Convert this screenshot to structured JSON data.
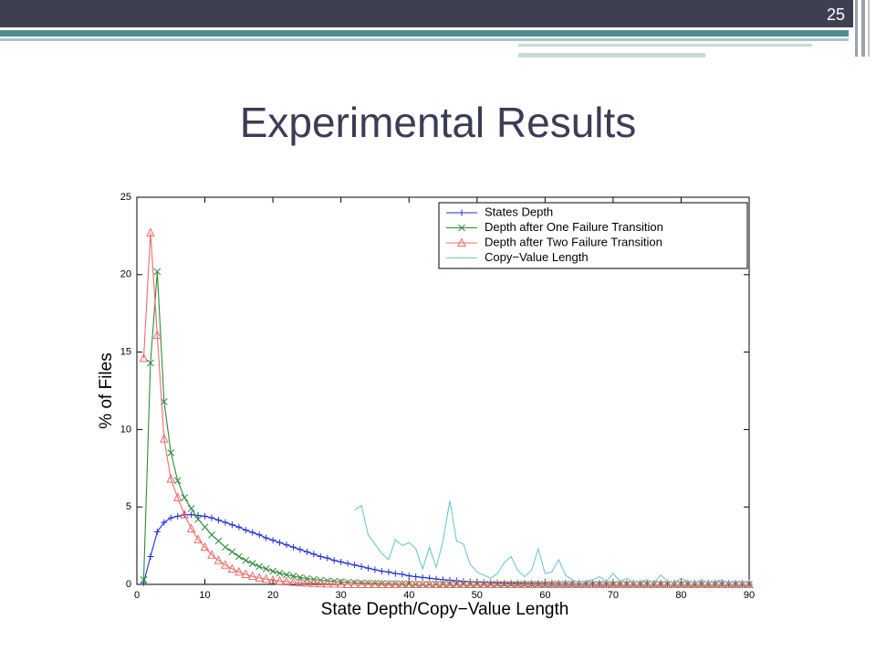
{
  "slide": {
    "number": "25",
    "title": "Experimental Results"
  },
  "chart_data": {
    "type": "line",
    "xlabel": "State Depth/Copy−Value Length",
    "ylabel": "% of Files",
    "x": [
      1,
      2,
      3,
      4,
      5,
      6,
      7,
      8,
      9,
      10,
      11,
      12,
      13,
      14,
      15,
      16,
      17,
      18,
      19,
      20,
      21,
      22,
      23,
      24,
      25,
      26,
      27,
      28,
      29,
      30,
      31,
      32,
      33,
      34,
      35,
      36,
      37,
      38,
      39,
      40,
      41,
      42,
      43,
      44,
      45,
      46,
      47,
      48,
      49,
      50,
      51,
      52,
      53,
      54,
      55,
      56,
      57,
      58,
      59,
      60,
      61,
      62,
      63,
      64,
      65,
      66,
      67,
      68,
      69,
      70,
      71,
      72,
      73,
      74,
      75,
      76,
      77,
      78,
      79,
      80,
      81,
      82,
      83,
      84,
      85,
      86,
      87,
      88,
      89,
      90
    ],
    "xlim": [
      0,
      90
    ],
    "xticks": [
      0,
      10,
      20,
      30,
      40,
      50,
      60,
      70,
      80,
      90
    ],
    "ylim": [
      0,
      25
    ],
    "yticks": [
      0,
      5,
      10,
      15,
      20,
      25
    ],
    "legend": "upper right",
    "series": [
      {
        "name": "States Depth",
        "color": "#1f2fd6",
        "marker": "plus",
        "values": [
          0.1,
          1.8,
          3.4,
          4.0,
          4.3,
          4.4,
          4.5,
          4.5,
          4.45,
          4.4,
          4.3,
          4.15,
          4.0,
          3.85,
          3.7,
          3.5,
          3.35,
          3.2,
          3.0,
          2.85,
          2.7,
          2.55,
          2.4,
          2.25,
          2.1,
          1.95,
          1.8,
          1.7,
          1.55,
          1.45,
          1.35,
          1.25,
          1.15,
          1.05,
          0.95,
          0.85,
          0.8,
          0.7,
          0.65,
          0.55,
          0.5,
          0.45,
          0.4,
          0.35,
          0.3,
          0.27,
          0.24,
          0.2,
          0.18,
          0.16,
          0.14,
          0.12,
          0.1,
          0.09,
          0.08,
          0.07,
          0.06,
          0.05,
          0.05,
          0.04,
          0.04,
          0.03,
          0.03,
          0.02,
          0.02,
          0.02,
          0.01,
          0.01,
          0.01,
          0.01,
          0,
          0,
          0,
          0,
          0,
          0,
          0,
          0,
          0,
          0,
          0,
          0,
          0,
          0,
          0,
          0,
          0,
          0,
          0,
          0
        ]
      },
      {
        "name": "Depth after One Failure Transition",
        "color": "#2e8b3a",
        "marker": "x",
        "values": [
          0.3,
          14.3,
          20.2,
          11.8,
          8.5,
          6.7,
          5.6,
          4.9,
          4.2,
          3.7,
          3.2,
          2.8,
          2.4,
          2.1,
          1.8,
          1.55,
          1.35,
          1.15,
          1.0,
          0.85,
          0.72,
          0.62,
          0.53,
          0.45,
          0.38,
          0.32,
          0.27,
          0.23,
          0.19,
          0.16,
          0.13,
          0.11,
          0.09,
          0.07,
          0.06,
          0.05,
          0.04,
          0.03,
          0.02,
          0.02,
          0,
          0,
          0,
          0,
          0,
          0,
          0,
          0,
          0,
          0,
          0,
          0,
          0,
          0,
          0,
          0,
          0,
          0,
          0,
          0,
          0,
          0,
          0,
          0,
          0,
          0,
          0,
          0,
          0,
          0,
          0,
          0,
          0,
          0,
          0,
          0,
          0,
          0,
          0,
          0,
          0,
          0,
          0,
          0,
          0,
          0,
          0,
          0,
          0,
          0
        ]
      },
      {
        "name": "Depth after Two Failure Transition",
        "color": "#f06b6b",
        "marker": "triangle",
        "values": [
          14.6,
          22.7,
          16.1,
          9.4,
          6.8,
          5.6,
          4.5,
          3.6,
          2.9,
          2.4,
          1.9,
          1.55,
          1.25,
          1.0,
          0.8,
          0.65,
          0.52,
          0.42,
          0.34,
          0.27,
          0.22,
          0.18,
          0.14,
          0.11,
          0.09,
          0.07,
          0.05,
          0.04,
          0.03,
          0.02,
          0,
          0,
          0,
          0,
          0,
          0,
          0,
          0,
          0,
          0,
          0,
          0,
          0,
          0,
          0,
          0,
          0,
          0,
          0,
          0,
          0,
          0,
          0,
          0,
          0,
          0,
          0,
          0,
          0,
          0,
          0,
          0,
          0,
          0,
          0,
          0,
          0,
          0,
          0,
          0,
          0,
          0,
          0,
          0,
          0,
          0,
          0,
          0,
          0,
          0,
          0,
          0,
          0,
          0,
          0,
          0,
          0,
          0,
          0,
          0
        ]
      },
      {
        "name": "Copy−Value Length",
        "color": "#6cc8d0",
        "marker": "none",
        "values": [
          null,
          null,
          null,
          null,
          null,
          null,
          null,
          null,
          null,
          null,
          null,
          null,
          null,
          null,
          null,
          null,
          null,
          null,
          null,
          null,
          null,
          null,
          null,
          null,
          null,
          null,
          null,
          null,
          null,
          null,
          null,
          4.8,
          5.1,
          3.2,
          2.6,
          2.0,
          1.6,
          2.9,
          2.5,
          2.7,
          2.3,
          1.0,
          2.4,
          1.1,
          2.8,
          5.4,
          2.8,
          2.6,
          1.3,
          0.8,
          0.6,
          0.4,
          0.7,
          1.4,
          1.8,
          0.9,
          0.5,
          0.9,
          2.3,
          0.7,
          0.8,
          1.6,
          0.6,
          0.3,
          0.1,
          0.2,
          0.3,
          0.5,
          0.2,
          0.7,
          0.2,
          0.4,
          0.1,
          0.2,
          0.3,
          0.1,
          0.6,
          0.2,
          0.1,
          0.4,
          0.2,
          0.1,
          0.3,
          0.1,
          0.2,
          0.3,
          0.1,
          0.2,
          0.1,
          0.2
        ]
      }
    ]
  }
}
